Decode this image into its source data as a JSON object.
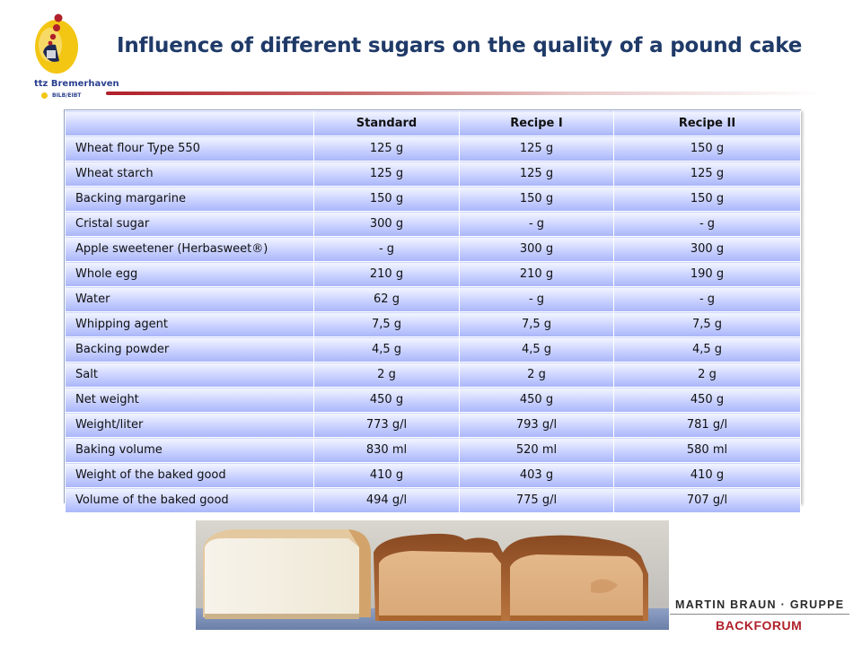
{
  "logo": {
    "name": "ttz Bremerhaven",
    "sub": "BILB/EIBT"
  },
  "title": "Influence of different sugars on the quality of a pound cake",
  "table": {
    "headers": [
      "",
      "Standard",
      "Recipe I",
      "Recipe II"
    ],
    "rows": [
      [
        "Wheat flour Type 550",
        "125 g",
        "125 g",
        "150 g"
      ],
      [
        "Wheat starch",
        "125 g",
        "125 g",
        "125 g"
      ],
      [
        "Backing margarine",
        "150 g",
        "150 g",
        "150 g"
      ],
      [
        "Cristal sugar",
        "300 g",
        "- g",
        "- g"
      ],
      [
        "Apple sweetener (Herbasweet®)",
        "- g",
        "300 g",
        "300 g"
      ],
      [
        "Whole egg",
        "210 g",
        "210 g",
        "190 g"
      ],
      [
        "Water",
        "62 g",
        "- g",
        "- g"
      ],
      [
        "Whipping agent",
        "7,5 g",
        "7,5 g",
        "7,5 g"
      ],
      [
        "Backing powder",
        "4,5 g",
        "4,5 g",
        "4,5 g"
      ],
      [
        "Salt",
        "2 g",
        "2 g",
        "2 g"
      ],
      [
        "Net weight",
        "450 g",
        "450 g",
        "450 g"
      ],
      [
        "Weight/liter",
        "773 g/l",
        "793 g/l",
        "781 g/l"
      ],
      [
        "Baking volume",
        "830 ml",
        "520 ml",
        "580 ml"
      ],
      [
        "Weight of the baked good",
        "410 g",
        "403 g",
        "410 g"
      ],
      [
        "Volume of the baked good",
        "494 g/l",
        "775 g/l",
        "707 g/l"
      ]
    ]
  },
  "footer": {
    "brand_line1": "MARTIN BRAUN · GRUPPE",
    "brand_line2": "BACKFORUM"
  },
  "colors": {
    "title": "#1f3a68",
    "accent_red": "#b0202a",
    "table_cell_top": "#f4f6ff",
    "table_cell_bottom": "#a9b6f9"
  }
}
